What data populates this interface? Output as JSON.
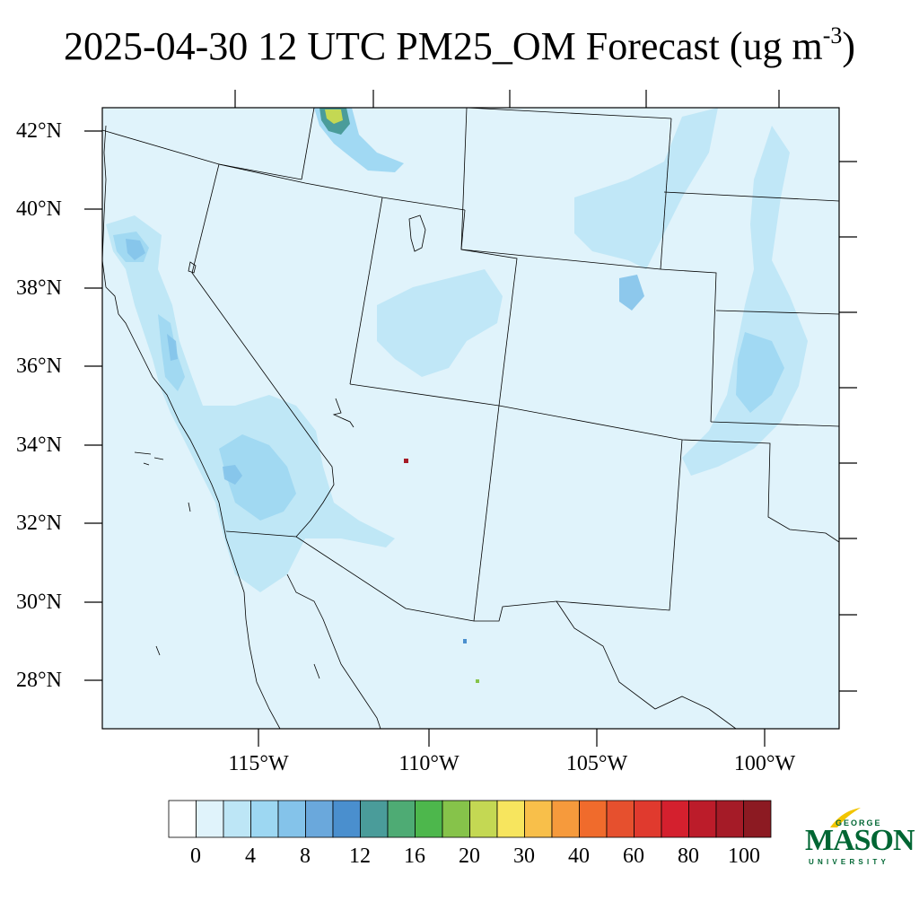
{
  "title": {
    "text": "2025-04-30 12 UTC PM25_OM Forecast (ug m",
    "superscript": "-3",
    "closing": ")"
  },
  "map": {
    "lat_labels": [
      "42°N",
      "40°N",
      "38°N",
      "36°N",
      "34°N",
      "32°N",
      "30°N",
      "28°N"
    ],
    "lon_labels": [
      "115°W",
      "110°W",
      "105°W",
      "100°W"
    ],
    "background_color": "#e0f3fb",
    "boundary_color": "#000000",
    "hotspots": [
      {
        "name": "idaho-montana-plume",
        "value": 22
      },
      {
        "name": "arizona-point",
        "value": 80
      },
      {
        "name": "mexico-point",
        "value": 20
      }
    ]
  },
  "colorbar": {
    "labels": [
      "0",
      "4",
      "8",
      "12",
      "16",
      "20",
      "30",
      "40",
      "60",
      "80",
      "100"
    ],
    "colors": [
      "#ffffff",
      "#e0f3fb",
      "#bde6f6",
      "#9dd7f2",
      "#84c3ea",
      "#6aa8dc",
      "#4a8fce",
      "#4a9c9a",
      "#4eab74",
      "#4db74c",
      "#86c34a",
      "#c4d853",
      "#f7e55e",
      "#f8bf4a",
      "#f69a3c",
      "#f06b2c",
      "#e6502e",
      "#e03a2e",
      "#d4202e",
      "#bc1c2a",
      "#a51b27",
      "#8c1a22"
    ]
  },
  "logo": {
    "line1": "GEORGE",
    "line2": "MASON",
    "line3": "UNIVERSITY",
    "color": "#006633",
    "accent": "#f2c500"
  }
}
